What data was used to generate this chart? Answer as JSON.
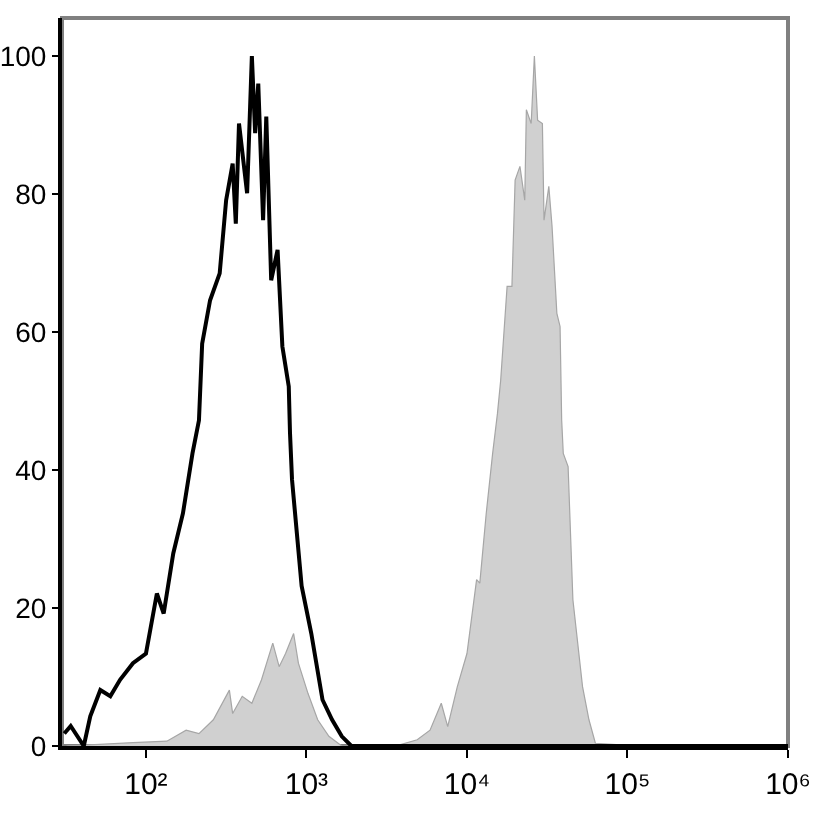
{
  "chart_data": {
    "type": "line",
    "log": "x",
    "grid": false,
    "xlim": [
      30,
      1000000
    ],
    "ylim": [
      0,
      105.5
    ],
    "xticks": [
      {
        "value": 100,
        "label": "10²"
      },
      {
        "value": 1000,
        "label": "10³"
      },
      {
        "value": 10000,
        "label": "10⁴"
      },
      {
        "value": 100000,
        "label": "10⁵"
      },
      {
        "value": 1000000,
        "label": "10⁶"
      }
    ],
    "yticks": [
      0,
      20,
      40,
      60,
      80,
      100
    ],
    "series": [
      {
        "type": "area",
        "color": "#d0d0d0",
        "x": [
          32,
          83,
          135,
          178,
          214,
          263,
          331,
          347,
          398,
          457,
          525,
          617,
          676,
          741,
          832,
          891,
          1023,
          1175,
          1380,
          1660,
          3715,
          4898,
          5888,
          6918,
          7586,
          8710,
          10000,
          11482,
          12023,
          13183,
          14454,
          15488,
          16218,
          17783,
          19055,
          19953,
          21380,
          22909,
          23442,
          25119,
          26303,
          27542,
          29512,
          30200,
          32359,
          33884,
          36308,
          38019,
          38905,
          39811,
          42658,
          45709,
          52481,
          57544,
          63096,
          85114,
          97724
        ],
        "values": [
          0,
          0.5,
          0.7,
          2.3,
          1.8,
          3.8,
          8.1,
          4.7,
          7.2,
          6.2,
          9.6,
          14.9,
          11.5,
          13.4,
          16.3,
          12,
          7.6,
          3.8,
          1.4,
          0,
          0.1,
          0.9,
          2.3,
          6.2,
          2.8,
          8.6,
          13.4,
          24.1,
          23.6,
          33.7,
          42.4,
          48.2,
          53,
          66.6,
          66.6,
          82,
          84,
          79.1,
          92.2,
          90.2,
          100,
          90.7,
          90.2,
          76.2,
          81.1,
          75.3,
          62.7,
          60.8,
          47.2,
          42.4,
          40.5,
          21.2,
          8.6,
          3.8,
          0.4,
          0.2,
          0
        ]
      },
      {
        "color": "#000000",
        "x": [
          31,
          34,
          41,
          45,
          52,
          60,
          69,
          83,
          100,
          117,
          129,
          148,
          170,
          195,
          214,
          224,
          251,
          288,
          316,
          347,
          363,
          380,
          427,
          457,
          479,
          501,
          537,
          562,
          603,
          661,
          708,
          776,
          790,
          813,
          933,
          1072,
          1259,
          1445,
          1660,
          1905,
          1000000
        ],
        "values": [
          1.8,
          2.9,
          0,
          4.3,
          8.1,
          7.2,
          9.6,
          12,
          13.4,
          22.1,
          19.2,
          27.9,
          33.7,
          42.4,
          47.2,
          58.3,
          64.6,
          68.5,
          79.1,
          84.4,
          75.7,
          90.2,
          80.1,
          100,
          88.8,
          96,
          76.2,
          91.2,
          67.5,
          71.9,
          57.9,
          52.1,
          45.3,
          38.6,
          23.2,
          16.3,
          6.7,
          3.8,
          1.4,
          0,
          0
        ]
      }
    ]
  }
}
